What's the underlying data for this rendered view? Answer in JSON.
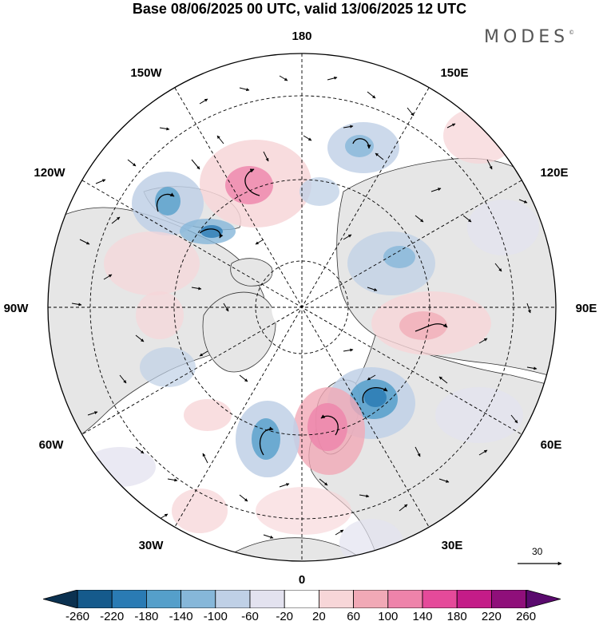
{
  "header": {
    "title": "Base 08/06/2025 00 UTC, valid 13/06/2025 12 UTC",
    "logo_text": "MODES",
    "logo_mark": "©"
  },
  "map": {
    "projection": "north-polar-stereographic",
    "longitude_labels": {
      "lon_180": "180",
      "lon_150w": "150W",
      "lon_150e": "150E",
      "lon_120w": "120W",
      "lon_120e": "120E",
      "lon_90w": "90W",
      "lon_90e": "90E",
      "lon_60w": "60W",
      "lon_60e": "60E",
      "lon_30w": "30W",
      "lon_30e": "30E",
      "lon_0": "0"
    },
    "wind_reference": {
      "value": "30"
    },
    "colors": {
      "land": "#e6e6e6",
      "coast": "#222222",
      "grid": "#000000"
    }
  },
  "colorbar": {
    "labels": [
      "-260",
      "-220",
      "-180",
      "-140",
      "-100",
      "-60",
      "-20",
      "20",
      "60",
      "100",
      "140",
      "180",
      "220",
      "260"
    ],
    "colors": [
      "#0b3150",
      "#155a8c",
      "#2a7bb4",
      "#559fca",
      "#86b7d9",
      "#bfd0e6",
      "#e3e2ef",
      "#ffffff",
      "#f7d6d8",
      "#f1a9b6",
      "#ee83aa",
      "#e54a9a",
      "#c41c88",
      "#8f0f7a",
      "#5a0a6e"
    ]
  }
}
